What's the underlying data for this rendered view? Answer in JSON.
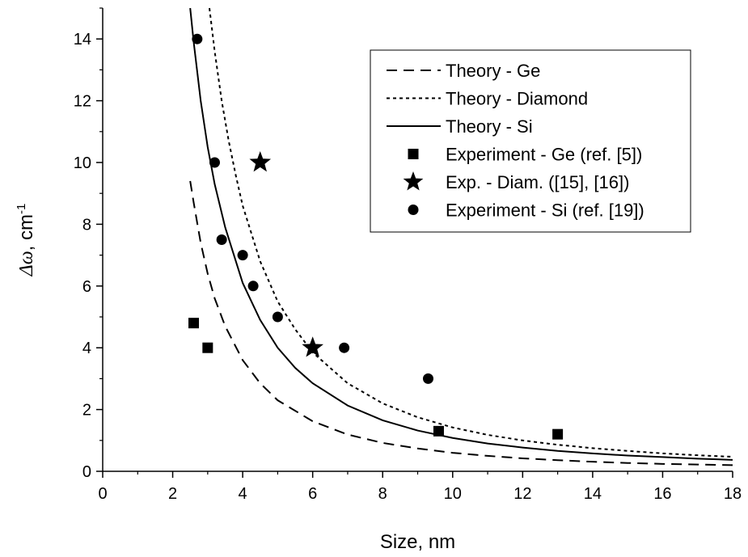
{
  "chart_data": {
    "type": "scatter",
    "title": "",
    "xlabel": "Size, nm",
    "ylabel_symbol": "Δω",
    "ylabel_rest": ", cm",
    "ylabel_exp": "-1",
    "xlim": [
      0,
      18
    ],
    "ylim": [
      0,
      15
    ],
    "xticks": [
      0,
      2,
      4,
      6,
      8,
      10,
      12,
      14,
      16,
      18
    ],
    "yticks": [
      0,
      2,
      4,
      6,
      8,
      10,
      12,
      14
    ],
    "grid": false,
    "legend_position": "top-right",
    "series": [
      {
        "name": "Theory - Ge",
        "kind": "line",
        "style": "dashed",
        "x": [
          2.5,
          2.6,
          2.8,
          3.0,
          3.2,
          3.5,
          4.0,
          4.5,
          5.0,
          6.0,
          7.0,
          8.0,
          9.0,
          10.0,
          11.0,
          12.0,
          13.0,
          14.0,
          15.0,
          16.0,
          17.0,
          18.0
        ],
        "y": [
          9.4,
          8.7,
          7.4,
          6.4,
          5.6,
          4.7,
          3.6,
          2.85,
          2.3,
          1.62,
          1.19,
          0.92,
          0.74,
          0.6,
          0.5,
          0.42,
          0.36,
          0.31,
          0.27,
          0.24,
          0.22,
          0.2
        ]
      },
      {
        "name": "Theory - Diamond",
        "kind": "line",
        "style": "dotted",
        "x": [
          3.05,
          3.2,
          3.4,
          3.6,
          3.8,
          4.0,
          4.5,
          5.0,
          5.5,
          6.0,
          7.0,
          8.0,
          9.0,
          10.0,
          11.0,
          12.0,
          13.0,
          14.0,
          15.0,
          16.0,
          17.0,
          18.0
        ],
        "y": [
          15.0,
          13.6,
          12.0,
          10.7,
          9.6,
          8.6,
          6.8,
          5.5,
          4.6,
          3.85,
          2.85,
          2.2,
          1.75,
          1.42,
          1.18,
          1.0,
          0.86,
          0.75,
          0.66,
          0.58,
          0.52,
          0.47
        ]
      },
      {
        "name": "Theory - Si",
        "kind": "line",
        "style": "solid",
        "x": [
          2.5,
          2.6,
          2.8,
          3.0,
          3.2,
          3.5,
          4.0,
          4.5,
          5.0,
          5.5,
          6.0,
          7.0,
          8.0,
          9.0,
          10.0,
          11.0,
          12.0,
          13.0,
          14.0,
          15.0,
          16.0,
          17.0,
          18.0
        ],
        "y": [
          15.0,
          13.9,
          12.0,
          10.5,
          9.3,
          7.9,
          6.1,
          4.9,
          4.0,
          3.35,
          2.85,
          2.13,
          1.65,
          1.32,
          1.08,
          0.9,
          0.77,
          0.66,
          0.58,
          0.51,
          0.46,
          0.41,
          0.37
        ]
      },
      {
        "name": "Experiment - Ge (ref. [5])",
        "kind": "points",
        "marker": "square",
        "x": [
          2.6,
          3.0,
          9.6,
          13.0
        ],
        "y": [
          4.8,
          4.0,
          1.3,
          1.2
        ]
      },
      {
        "name": "Exp. - Diam. ([15], [16])",
        "kind": "points",
        "marker": "star",
        "x": [
          4.5,
          6.0
        ],
        "y": [
          10.0,
          4.0
        ]
      },
      {
        "name": "Experiment - Si (ref. [19])",
        "kind": "points",
        "marker": "circle",
        "x": [
          2.7,
          3.2,
          3.4,
          4.0,
          4.3,
          5.0,
          6.9,
          9.3
        ],
        "y": [
          14.0,
          10.0,
          7.5,
          7.0,
          6.0,
          5.0,
          4.0,
          3.0
        ]
      }
    ]
  }
}
